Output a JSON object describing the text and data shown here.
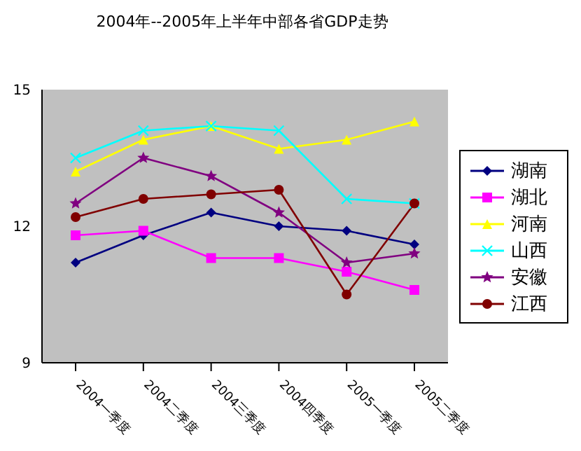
{
  "chart_data": {
    "type": "line",
    "title": "2004年--2005年上半年中部各省GDP走势",
    "categories": [
      "2004一季度",
      "2004二季度",
      "2004三季度",
      "2004四季度",
      "2005一季度",
      "2005二季度"
    ],
    "series": [
      {
        "name": "湖南",
        "color": "#000080",
        "marker": "diamond",
        "values": [
          11.2,
          11.8,
          12.3,
          12.0,
          11.9,
          11.6
        ]
      },
      {
        "name": "湖北",
        "color": "#ff00ff",
        "marker": "square",
        "values": [
          11.8,
          11.9,
          11.3,
          11.3,
          11.0,
          10.6
        ]
      },
      {
        "name": "河南",
        "color": "#ffff00",
        "marker": "triangle",
        "values": [
          13.2,
          13.9,
          14.2,
          13.7,
          13.9,
          14.3
        ]
      },
      {
        "name": "山西",
        "color": "#00ffff",
        "marker": "cross",
        "values": [
          13.5,
          14.1,
          14.2,
          14.1,
          12.6,
          12.5
        ]
      },
      {
        "name": "安徽",
        "color": "#800080",
        "marker": "star",
        "values": [
          12.5,
          13.5,
          13.1,
          12.3,
          11.2,
          11.4
        ]
      },
      {
        "name": "江西",
        "color": "#800000",
        "marker": "circle",
        "values": [
          12.2,
          12.6,
          12.7,
          12.8,
          10.5,
          12.5
        ]
      }
    ],
    "ylim": [
      9,
      15
    ],
    "yticks": [
      9,
      12,
      15
    ],
    "grid": false,
    "legend": "right"
  }
}
